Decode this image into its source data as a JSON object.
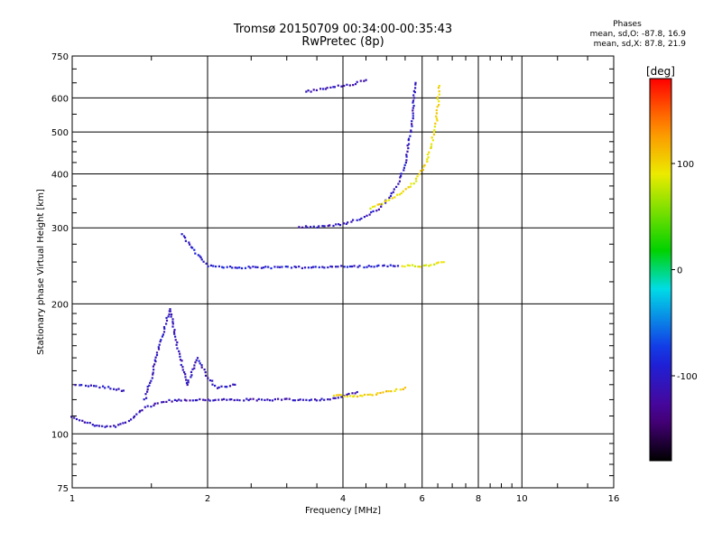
{
  "title": {
    "line1": "Tromsø 20150709 00:34:00-00:35:43",
    "line2": "RwPretec (8p)"
  },
  "phases_box": {
    "title": "Phases",
    "o_line": "mean, sd,O: -87.8, 16.9",
    "x_line": "mean, sd,X:  87.8, 21.9"
  },
  "colorbar": {
    "label": "[deg]",
    "min": -180,
    "max": 180,
    "ticks": [
      {
        "value": 100,
        "label": "100"
      },
      {
        "value": 0,
        "label": "0"
      },
      {
        "value": -100,
        "label": "-100"
      }
    ]
  },
  "colors": {
    "ordinary_trace": "#1f2fe0",
    "extraordinary_trace": "#e8e81e"
  },
  "chart_data": {
    "type": "scatter",
    "xlabel": "Frequency [MHz]",
    "ylabel": "Stationary phase Virtual Height [km]",
    "xscale": "log",
    "yscale": "log",
    "xlim": [
      1,
      16
    ],
    "ylim": [
      75,
      750
    ],
    "x_ticks": [
      {
        "value": 1,
        "label": "1"
      },
      {
        "value": 2,
        "label": "2"
      },
      {
        "value": 4,
        "label": "4"
      },
      {
        "value": 6,
        "label": "6"
      },
      {
        "value": 8,
        "label": "8"
      },
      {
        "value": 10,
        "label": "10"
      },
      {
        "value": 16,
        "label": "16"
      }
    ],
    "y_ticks": [
      {
        "value": 75,
        "label": "75"
      },
      {
        "value": 100,
        "label": "100"
      },
      {
        "value": 200,
        "label": "200"
      },
      {
        "value": 300,
        "label": "300"
      },
      {
        "value": 400,
        "label": "400"
      },
      {
        "value": 500,
        "label": "500"
      },
      {
        "value": 600,
        "label": "600"
      },
      {
        "value": 750,
        "label": "750"
      }
    ],
    "grid": true,
    "color_by": "phase [deg]",
    "traces": [
      {
        "mode": "O",
        "layer": "E",
        "phase": -110,
        "points": [
          [
            1.0,
            110
          ],
          [
            1.05,
            107
          ],
          [
            1.15,
            104
          ],
          [
            1.25,
            104
          ],
          [
            1.35,
            108
          ],
          [
            1.45,
            115
          ],
          [
            1.6,
            119
          ],
          [
            1.8,
            120
          ],
          [
            2.0,
            120
          ],
          [
            2.5,
            120
          ],
          [
            3.0,
            120
          ],
          [
            3.5,
            120
          ],
          [
            3.9,
            121
          ],
          [
            4.3,
            125
          ]
        ]
      },
      {
        "mode": "O",
        "layer": "E-cusp",
        "phase": -100,
        "points": [
          [
            1.02,
            130
          ],
          [
            1.1,
            129
          ],
          [
            1.2,
            128
          ],
          [
            1.3,
            126
          ]
        ]
      },
      {
        "mode": "O",
        "layer": "Es-spread",
        "phase": -105,
        "points": [
          [
            1.45,
            120
          ],
          [
            1.5,
            135
          ],
          [
            1.55,
            155
          ],
          [
            1.6,
            175
          ],
          [
            1.65,
            195
          ],
          [
            1.7,
            165
          ],
          [
            1.75,
            145
          ],
          [
            1.8,
            130
          ],
          [
            1.9,
            150
          ],
          [
            2.0,
            135
          ],
          [
            2.1,
            128
          ],
          [
            2.3,
            130
          ]
        ]
      },
      {
        "mode": "O",
        "layer": "F1",
        "phase": -95,
        "points": [
          [
            1.75,
            290
          ],
          [
            1.9,
            260
          ],
          [
            2.0,
            245
          ],
          [
            2.3,
            243
          ],
          [
            2.7,
            243
          ],
          [
            3.2,
            243
          ],
          [
            3.8,
            244
          ],
          [
            4.5,
            244
          ],
          [
            5.3,
            245
          ]
        ]
      },
      {
        "mode": "O",
        "layer": "F2",
        "phase": -105,
        "points": [
          [
            3.2,
            302
          ],
          [
            3.6,
            302
          ],
          [
            4.0,
            306
          ],
          [
            4.4,
            316
          ],
          [
            4.8,
            332
          ],
          [
            5.1,
            355
          ],
          [
            5.3,
            380
          ],
          [
            5.5,
            420
          ],
          [
            5.6,
            470
          ],
          [
            5.7,
            530
          ],
          [
            5.75,
            600
          ],
          [
            5.8,
            650
          ]
        ]
      },
      {
        "mode": "O",
        "layer": "F2-upper",
        "phase": -110,
        "points": [
          [
            3.3,
            620
          ],
          [
            3.6,
            630
          ],
          [
            3.9,
            640
          ],
          [
            4.2,
            645
          ],
          [
            4.5,
            660
          ]
        ]
      },
      {
        "mode": "X",
        "layer": "F2",
        "phase": 95,
        "points": [
          [
            4.6,
            333
          ],
          [
            5.0,
            346
          ],
          [
            5.4,
            362
          ],
          [
            5.8,
            385
          ],
          [
            6.1,
            420
          ],
          [
            6.3,
            470
          ],
          [
            6.45,
            530
          ],
          [
            6.5,
            580
          ],
          [
            6.55,
            640
          ]
        ]
      },
      {
        "mode": "X",
        "layer": "E",
        "phase": 105,
        "points": [
          [
            3.8,
            123
          ],
          [
            4.2,
            122
          ],
          [
            4.6,
            123
          ],
          [
            5.2,
            126
          ],
          [
            5.5,
            128
          ]
        ]
      },
      {
        "mode": "X",
        "layer": "F1",
        "phase": 90,
        "points": [
          [
            5.4,
            245
          ],
          [
            5.8,
            245
          ],
          [
            6.2,
            245
          ],
          [
            6.7,
            250
          ]
        ]
      }
    ]
  }
}
